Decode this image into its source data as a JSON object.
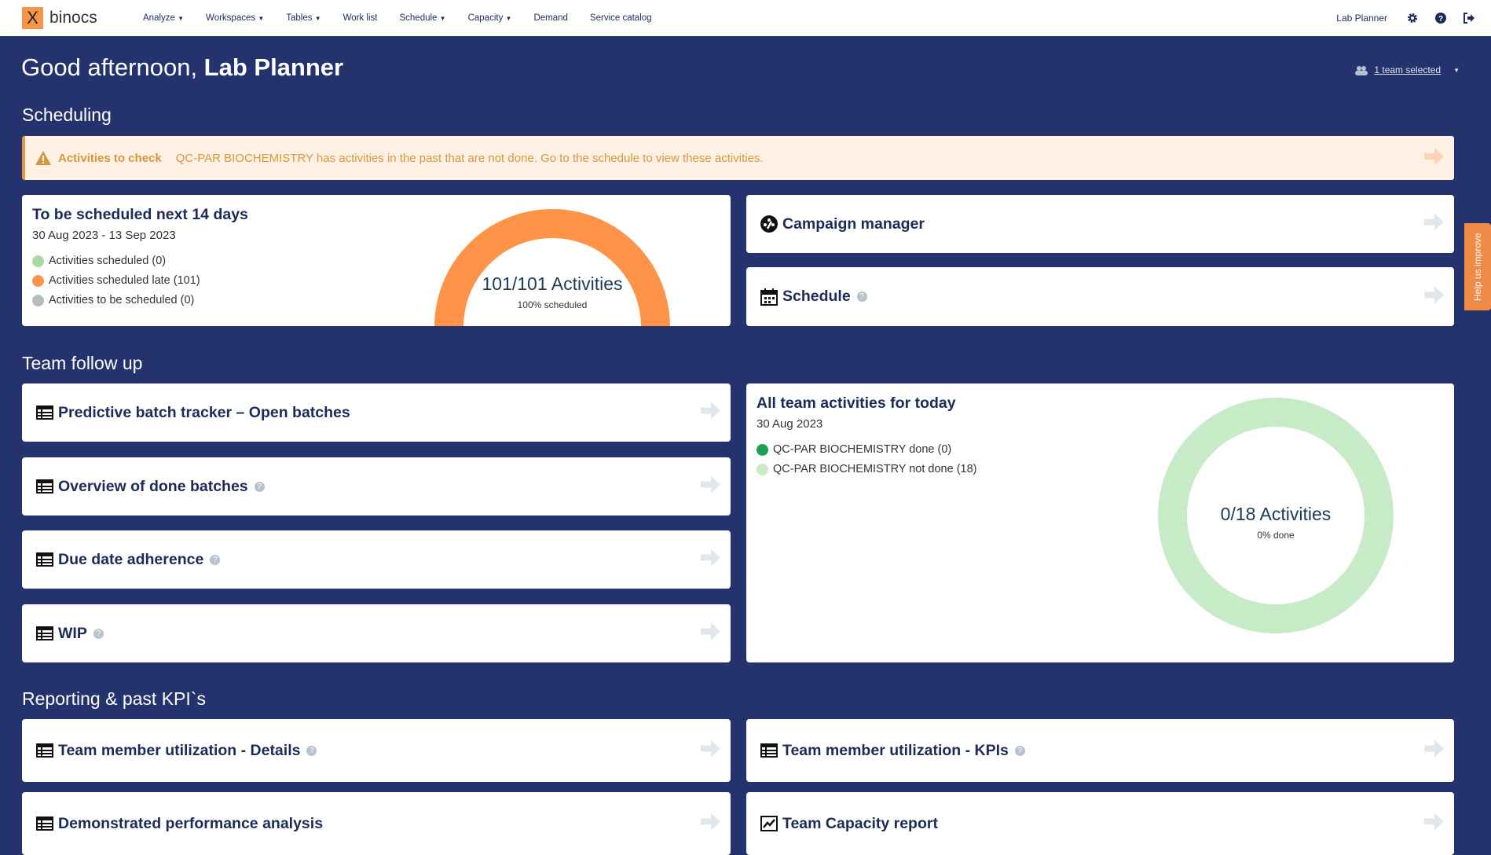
{
  "app": {
    "logo_mark": "X",
    "logo_text": "binocs",
    "brand_color": "#f79447",
    "background": "#24336d"
  },
  "nav": {
    "items": [
      {
        "label": "Analyze",
        "dropdown": true
      },
      {
        "label": "Workspaces",
        "dropdown": true
      },
      {
        "label": "Tables",
        "dropdown": true
      },
      {
        "label": "Work list",
        "dropdown": false
      },
      {
        "label": "Schedule",
        "dropdown": true
      },
      {
        "label": "Capacity",
        "dropdown": true
      },
      {
        "label": "Demand",
        "dropdown": false
      },
      {
        "label": "Service catalog",
        "dropdown": false
      }
    ],
    "user": "Lab Planner",
    "icons": [
      "gear-icon",
      "help-icon",
      "logout-icon"
    ]
  },
  "greeting": {
    "prefix": "Good afternoon, ",
    "name": "Lab Planner"
  },
  "team_selector": {
    "label": "1 team selected"
  },
  "sections": {
    "scheduling": "Scheduling",
    "team": "Team follow up",
    "reporting": "Reporting & past KPI`s"
  },
  "banner": {
    "title": "Activities to check",
    "message": "QC-PAR BIOCHEMISTRY has activities in the past that are not done. Go to the schedule to view these activities."
  },
  "scheduled": {
    "title": "To be scheduled next 14 days",
    "range": "30 Aug 2023 - 13 Sep 2023",
    "legend": [
      {
        "label": "Activities scheduled (0)",
        "color": "#a7d9a5",
        "value": 0
      },
      {
        "label": "Activities scheduled late (101)",
        "color": "#ff9448",
        "value": 101
      },
      {
        "label": "Activities to be scheduled (0)",
        "color": "#b3bdc6",
        "value": 0
      }
    ],
    "center": "101/101 Activities",
    "sub": "100% scheduled"
  },
  "campaign": {
    "title": "Campaign manager"
  },
  "schedule": {
    "title": "Schedule"
  },
  "team_cards": [
    {
      "title": "Predictive batch tracker – Open batches",
      "help": false
    },
    {
      "title": "Overview of done batches",
      "help": true
    },
    {
      "title": "Due date adherence",
      "help": true
    },
    {
      "title": "WIP",
      "help": true
    }
  ],
  "today": {
    "title": "All team activities for today",
    "date": "30 Aug 2023",
    "legend": [
      {
        "label": "QC-PAR BIOCHEMISTRY done (0)",
        "color": "#1aa250",
        "value": 0
      },
      {
        "label": "QC-PAR BIOCHEMISTRY not done (18)",
        "color": "#c6ebc6",
        "value": 18
      }
    ],
    "center": "0/18 Activities",
    "sub": "0% done"
  },
  "reporting": [
    {
      "title": "Team member utilization - Details",
      "help": true,
      "icon": "table-icon"
    },
    {
      "title": "Team member utilization - KPIs",
      "help": true,
      "icon": "table-icon"
    },
    {
      "title": "Demonstrated performance analysis",
      "help": false,
      "icon": "table-icon"
    },
    {
      "title": "Team Capacity report",
      "help": false,
      "icon": "chart-icon"
    }
  ],
  "help_tab": "Help us improve",
  "help_glyph": "?"
}
